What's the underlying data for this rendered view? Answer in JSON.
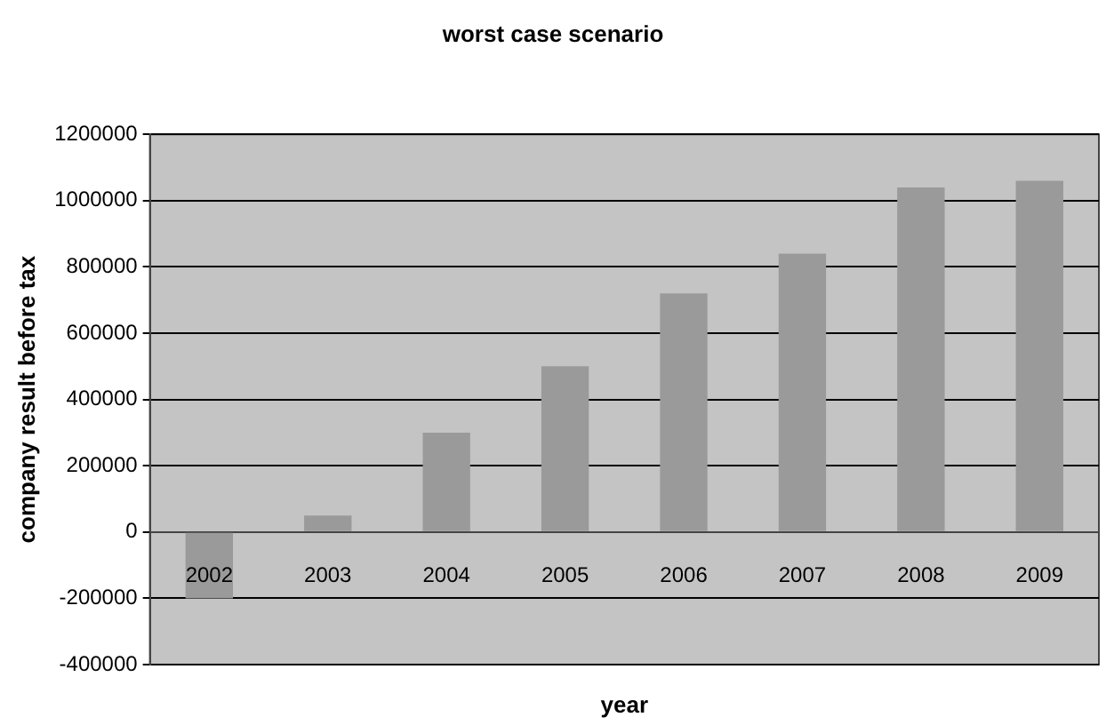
{
  "chart_data": {
    "type": "bar",
    "title": "worst case scenario",
    "xlabel": "year",
    "ylabel": "company result before tax",
    "categories": [
      "2002",
      "2003",
      "2004",
      "2005",
      "2006",
      "2007",
      "2008",
      "2009"
    ],
    "values": [
      -200000,
      50000,
      300000,
      500000,
      720000,
      840000,
      1040000,
      1060000
    ],
    "color": "#9a9a9a",
    "ylim": [
      -400000,
      1200000
    ],
    "yticks": [
      -400000,
      -200000,
      0,
      200000,
      400000,
      600000,
      800000,
      1000000,
      1200000
    ],
    "grid": "y"
  }
}
